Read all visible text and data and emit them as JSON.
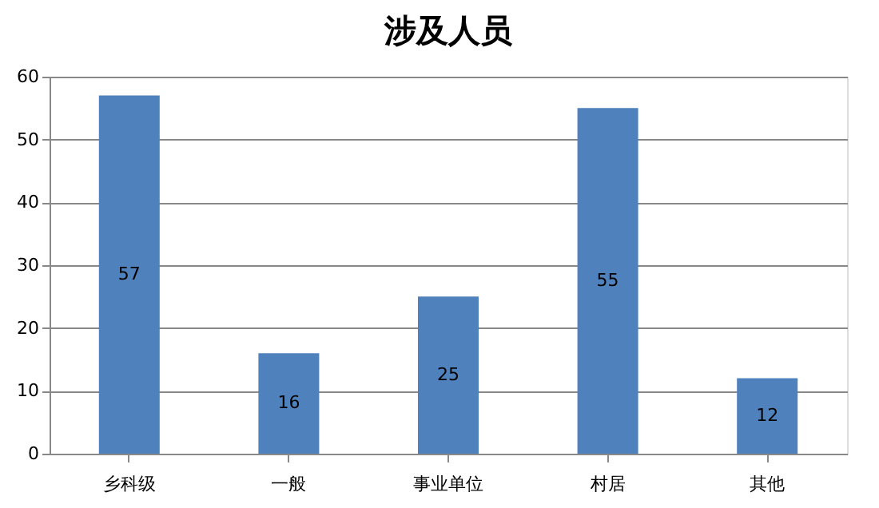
{
  "chart_data": {
    "type": "bar",
    "title": "涉及人员",
    "categories": [
      "乡科级",
      "一般",
      "事业单位",
      "村居",
      "其他"
    ],
    "values": [
      57,
      16,
      25,
      55,
      12
    ],
    "color": "#4f81bd",
    "ylim": [
      0,
      60
    ],
    "yticks": [
      0,
      10,
      20,
      30,
      40,
      50,
      60
    ],
    "grid": "y",
    "data_labels": true
  }
}
